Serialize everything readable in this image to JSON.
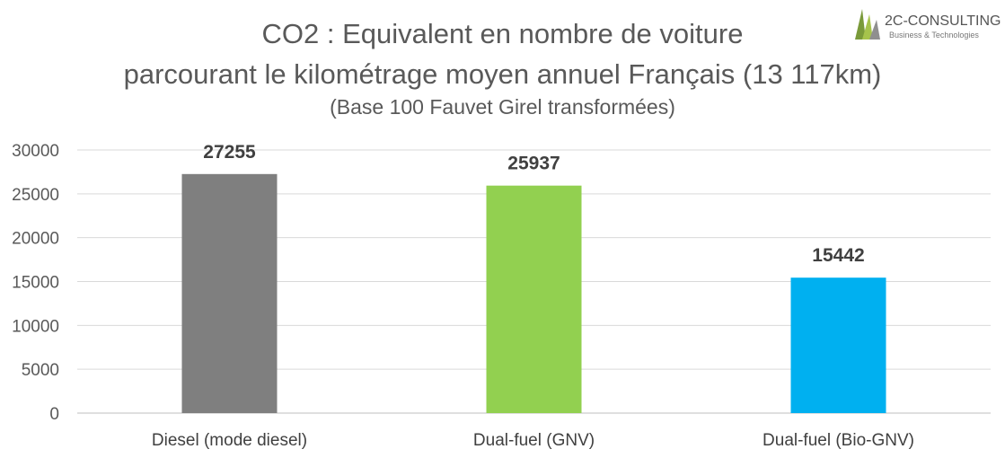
{
  "chart_data": {
    "type": "bar",
    "title": "CO2 : Equivalent en nombre de voiture",
    "title_line2": "parcourant le kilométrage moyen annuel Français (13 117km)",
    "subtitle": "(Base 100 Fauvet Girel transformées)",
    "categories": [
      "Diesel (mode diesel)",
      "Dual-fuel (GNV)",
      "Dual-fuel (Bio-GNV)"
    ],
    "values": [
      27255,
      25937,
      15442
    ],
    "bar_colors": [
      "#7f7f7f",
      "#92d050",
      "#00b0f0"
    ],
    "ylim": [
      0,
      30000
    ],
    "yticks": [
      0,
      5000,
      10000,
      15000,
      20000,
      25000,
      30000
    ],
    "grid": true,
    "data_labels": true,
    "xlabel": "",
    "ylabel": ""
  },
  "logo": {
    "name": "2C-CONSULTING",
    "tagline": "Business & Technologies",
    "colors": [
      "#7a9a3a",
      "#a6c34c",
      "#6f6f6f"
    ]
  }
}
